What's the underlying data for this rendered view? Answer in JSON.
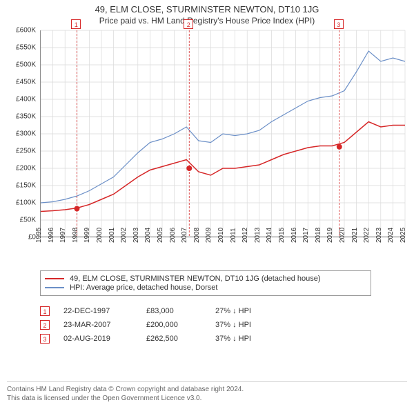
{
  "title_line1": "49, ELM CLOSE, STURMINSTER NEWTON, DT10 1JG",
  "title_line2": "Price paid vs. HM Land Registry's House Price Index (HPI)",
  "chart": {
    "type": "line",
    "background_color": "#ffffff",
    "grid_color": "#d9d9d9",
    "axis_color": "#666666",
    "label_fontsize": 10,
    "title_fontsize": 13,
    "x": {
      "years": [
        1995,
        1996,
        1997,
        1998,
        1999,
        2000,
        2001,
        2002,
        2003,
        2004,
        2005,
        2006,
        2007,
        2008,
        2009,
        2010,
        2011,
        2012,
        2013,
        2014,
        2015,
        2016,
        2017,
        2018,
        2019,
        2020,
        2021,
        2022,
        2023,
        2024,
        2025
      ],
      "tick_label_rotation": 90
    },
    "y": {
      "ticks": [
        0,
        50000,
        100000,
        150000,
        200000,
        250000,
        300000,
        350000,
        400000,
        450000,
        500000,
        550000,
        600000
      ],
      "tick_labels": [
        "£0",
        "£50K",
        "£100K",
        "£150K",
        "£200K",
        "£250K",
        "£300K",
        "£350K",
        "£400K",
        "£450K",
        "£500K",
        "£550K",
        "£600K"
      ],
      "lim": [
        0,
        600000
      ]
    },
    "series": [
      {
        "name": "property_price",
        "label": "49, ELM CLOSE, STURMINSTER NEWTON, DT10 1JG (detached house)",
        "color": "#d62728",
        "line_width": 1.5,
        "values_by_year": {
          "1995": 75000,
          "1996": 77000,
          "1997": 80000,
          "1998": 85000,
          "1999": 95000,
          "2000": 110000,
          "2001": 125000,
          "2002": 150000,
          "2003": 175000,
          "2004": 195000,
          "2005": 205000,
          "2006": 215000,
          "2007": 225000,
          "2008": 190000,
          "2009": 180000,
          "2010": 200000,
          "2011": 200000,
          "2012": 205000,
          "2013": 210000,
          "2014": 225000,
          "2015": 240000,
          "2016": 250000,
          "2017": 260000,
          "2018": 265000,
          "2019": 265000,
          "2020": 275000,
          "2021": 305000,
          "2022": 335000,
          "2023": 320000,
          "2024": 325000,
          "2025": 325000
        }
      },
      {
        "name": "hpi_dorset_detached",
        "label": "HPI: Average price, detached house, Dorset",
        "color": "#6b8fc7",
        "line_width": 1.2,
        "values_by_year": {
          "1995": 100000,
          "1996": 103000,
          "1997": 110000,
          "1998": 120000,
          "1999": 135000,
          "2000": 155000,
          "2001": 175000,
          "2002": 210000,
          "2003": 245000,
          "2004": 275000,
          "2005": 285000,
          "2006": 300000,
          "2007": 320000,
          "2008": 280000,
          "2009": 275000,
          "2010": 300000,
          "2011": 295000,
          "2012": 300000,
          "2013": 310000,
          "2014": 335000,
          "2015": 355000,
          "2016": 375000,
          "2017": 395000,
          "2018": 405000,
          "2019": 410000,
          "2020": 425000,
          "2021": 480000,
          "2022": 540000,
          "2023": 510000,
          "2024": 520000,
          "2025": 510000
        }
      }
    ],
    "sale_markers": [
      {
        "n": "1",
        "year": 1997.98,
        "price": 83000
      },
      {
        "n": "2",
        "year": 2007.23,
        "price": 200000
      },
      {
        "n": "3",
        "year": 2019.59,
        "price": 262500
      }
    ],
    "marker_dot_color": "#d62728",
    "marker_dot_radius": 4,
    "marker_line_dash": "3,2",
    "marker_line_color": "#d62728"
  },
  "legend": {
    "border_color": "#999999",
    "rows": [
      {
        "color": "#d62728",
        "label": "49, ELM CLOSE, STURMINSTER NEWTON, DT10 1JG (detached house)"
      },
      {
        "color": "#6b8fc7",
        "label": "HPI: Average price, detached house, Dorset"
      }
    ]
  },
  "events": [
    {
      "n": "1",
      "date": "22-DEC-1997",
      "price": "£83,000",
      "pct": "27% ↓ HPI"
    },
    {
      "n": "2",
      "date": "23-MAR-2007",
      "price": "£200,000",
      "pct": "37% ↓ HPI"
    },
    {
      "n": "3",
      "date": "02-AUG-2019",
      "price": "£262,500",
      "pct": "37% ↓ HPI"
    }
  ],
  "footer": {
    "line1": "Contains HM Land Registry data © Crown copyright and database right 2024.",
    "line2": "This data is licensed under the Open Government Licence v3.0."
  }
}
